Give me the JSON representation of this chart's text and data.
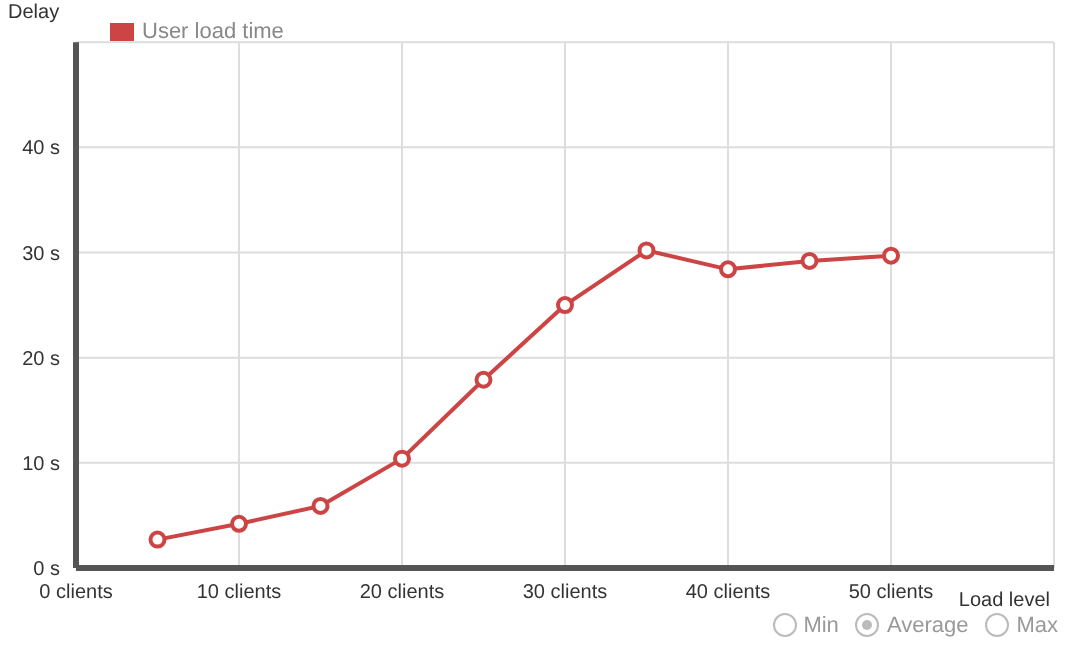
{
  "chart_data": {
    "type": "line",
    "xlabel": "Load level",
    "ylabel": "Delay",
    "x": [
      5,
      10,
      15,
      20,
      25,
      30,
      35,
      40,
      45,
      50
    ],
    "series": [
      {
        "name": "User load time",
        "color": "#cc4444",
        "values": [
          2.7,
          4.2,
          5.9,
          10.4,
          17.9,
          25.0,
          30.2,
          28.4,
          29.2,
          29.7
        ]
      }
    ],
    "xlim": [
      0,
      60
    ],
    "ylim": [
      0,
      50
    ],
    "xticks": [
      {
        "value": 0,
        "label": "0 clients"
      },
      {
        "value": 10,
        "label": "10 clients"
      },
      {
        "value": 20,
        "label": "20 clients"
      },
      {
        "value": 30,
        "label": "30 clients"
      },
      {
        "value": 40,
        "label": "40 clients"
      },
      {
        "value": 50,
        "label": "50 clients"
      }
    ],
    "yticks": [
      {
        "value": 0,
        "label": "0 s"
      },
      {
        "value": 10,
        "label": "10 s"
      },
      {
        "value": 20,
        "label": "20 s"
      },
      {
        "value": 30,
        "label": "30 s"
      },
      {
        "value": 40,
        "label": "40 s"
      }
    ],
    "grid": true,
    "legend": "top left",
    "marker": "circle",
    "line_style": "solid",
    "annotations": [
      "Min",
      "Average",
      "Max"
    ]
  }
}
